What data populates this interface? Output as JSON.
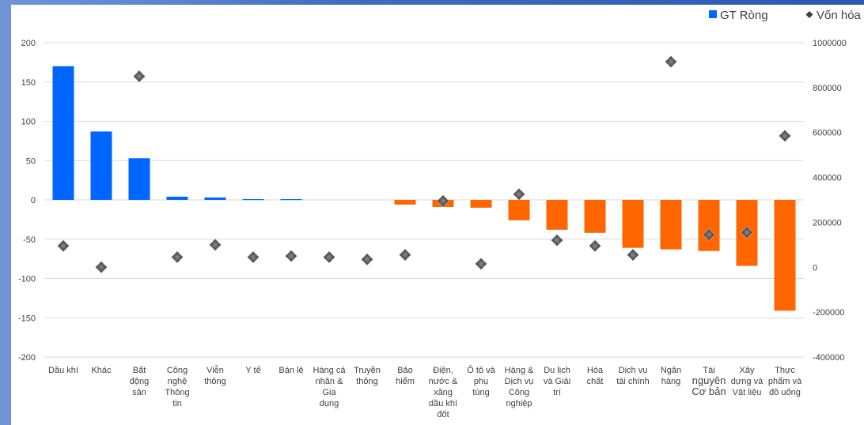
{
  "chart_data": {
    "type": "bar",
    "title": "",
    "xlabel": "",
    "ylabel": "",
    "ylim": [
      -200,
      200
    ],
    "y2lim": [
      -400000,
      1000000
    ],
    "yticks": [
      200,
      150,
      100,
      50,
      0,
      -50,
      -100,
      -150,
      -200
    ],
    "y2ticks": [
      1000000,
      800000,
      600000,
      400000,
      200000,
      0,
      -200000,
      -400000
    ],
    "grid": true,
    "legend_position": "top-right",
    "categories": [
      "Dầu khí",
      "Khác",
      "Bất động sản",
      "Công nghệ Thông tin",
      "Viễn thông",
      "Y tế",
      "Bán lẻ",
      "Hàng cá nhân & Gia dụng",
      "Truyền thông",
      "Bảo hiểm",
      "Điện, nước & xăng dầu khí đốt",
      "Ô tô và phụ tùng",
      "Hàng & Dịch vụ Công nghiệp",
      "Du lịch và Giải trí",
      "Hóa chất",
      "Dịch vụ tài chính",
      "Ngân hàng",
      "Tài nguyên Cơ bản",
      "Xây dựng và Vật liệu",
      "Thực phẩm và đồ uống"
    ],
    "category_lines": [
      [
        "Dầu khí"
      ],
      [
        "Khác"
      ],
      [
        "Bất",
        "động",
        "sản"
      ],
      [
        "Công",
        "nghệ",
        "Thông",
        "tin"
      ],
      [
        "Viễn",
        "thông"
      ],
      [
        "Y tế"
      ],
      [
        "Bán lẻ"
      ],
      [
        "Hàng cá",
        "nhân &",
        "Gia",
        "dụng"
      ],
      [
        "Truyền",
        "thông"
      ],
      [
        "Bảo",
        "hiểm"
      ],
      [
        "Điện,",
        "nước &",
        "xăng",
        "dầu khí",
        "đốt"
      ],
      [
        "Ô tô và",
        "phụ",
        "tùng"
      ],
      [
        "Hàng &",
        "Dịch vụ",
        "Công",
        "nghiệp"
      ],
      [
        "Du lịch",
        "và Giải",
        "trí"
      ],
      [
        "Hóa",
        "chất"
      ],
      [
        "Dịch vụ",
        "tài chính"
      ],
      [
        "Ngân",
        "hàng"
      ],
      [
        "Tài",
        "nguyên",
        "Cơ bản"
      ],
      [
        "Xây",
        "dựng và",
        "Vật liệu"
      ],
      [
        "Thực",
        "phẩm và",
        "đồ uống"
      ]
    ],
    "category_big_lines": [
      [],
      [],
      [],
      [],
      [],
      [],
      [],
      [],
      [],
      [],
      [],
      [],
      [],
      [],
      [],
      [],
      [],
      [
        1,
        2
      ],
      [],
      []
    ],
    "series": [
      {
        "name": "GT Ròng",
        "kind": "bar",
        "axis": "left",
        "values": [
          170,
          87,
          53,
          4,
          3,
          1,
          1,
          0,
          0,
          -6,
          -9,
          -10,
          -26,
          -38,
          -42,
          -61,
          -63,
          -65,
          -84,
          -141
        ]
      },
      {
        "name": "Vốn hóa",
        "kind": "marker",
        "axis": "right",
        "values": [
          95000,
          0,
          850000,
          45000,
          100000,
          45000,
          50000,
          45000,
          35000,
          55000,
          295000,
          15000,
          325000,
          120000,
          95000,
          55000,
          915000,
          145000,
          155000,
          585000
        ]
      }
    ],
    "colors": {
      "positive": "#0066ff",
      "negative": "#ff6600",
      "marker": "#404040",
      "grid": "#d9d9d9"
    }
  }
}
